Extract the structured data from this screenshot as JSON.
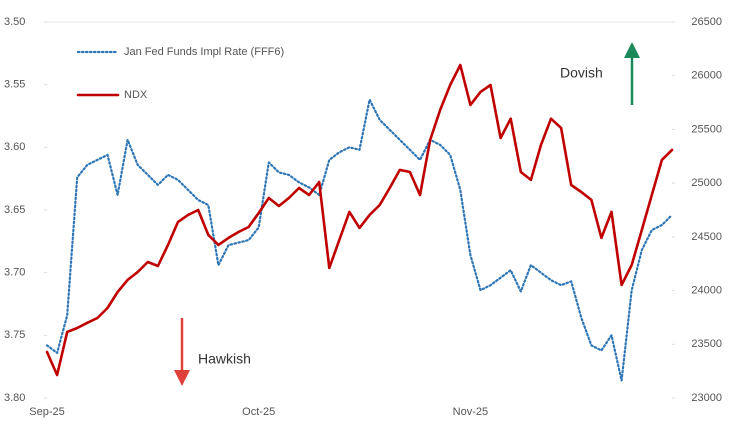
{
  "chart_data": {
    "type": "line",
    "categories": [
      "Sep-25",
      null,
      null,
      null,
      null,
      null,
      null,
      null,
      null,
      null,
      null,
      null,
      null,
      null,
      null,
      null,
      null,
      null,
      null,
      null,
      null,
      "Oct-25",
      null,
      null,
      null,
      null,
      null,
      null,
      null,
      null,
      null,
      null,
      null,
      null,
      null,
      null,
      null,
      null,
      null,
      null,
      null,
      null,
      "Nov-25",
      null,
      null,
      null,
      null,
      null,
      null,
      null,
      null,
      null,
      null,
      null,
      null,
      null,
      null,
      null,
      null,
      null,
      null,
      null,
      null
    ],
    "series": [
      {
        "name": "Jan Fed Funds Impl Rate (FFF6)",
        "color": "#2e75b6",
        "style": "dotted",
        "axis": "y",
        "values": [
          3.758,
          3.764,
          3.734,
          3.624,
          3.614,
          3.61,
          3.606,
          3.638,
          3.594,
          3.614,
          3.622,
          3.63,
          3.622,
          3.626,
          3.634,
          3.642,
          3.646,
          3.694,
          3.678,
          3.676,
          3.674,
          3.664,
          3.612,
          3.62,
          3.622,
          3.628,
          3.632,
          3.638,
          3.61,
          3.604,
          3.6,
          3.602,
          3.562,
          3.578,
          3.586,
          3.594,
          3.602,
          3.61,
          3.594,
          3.598,
          3.606,
          3.634,
          3.686,
          3.714,
          3.71,
          3.704,
          3.698,
          3.715,
          3.694,
          3.7,
          3.706,
          3.71,
          3.707,
          3.736,
          3.758,
          3.762,
          3.75,
          3.786,
          3.714,
          3.682,
          3.666,
          3.662,
          3.654
        ]
      },
      {
        "name": "NDX",
        "color": "#c00000",
        "style": "solid",
        "axis": "y2",
        "values": [
          23428,
          23214,
          23615,
          23652,
          23700,
          23745,
          23838,
          23987,
          24099,
          24173,
          24266,
          24229,
          24425,
          24639,
          24704,
          24750,
          24518,
          24425,
          24490,
          24545,
          24592,
          24722,
          24862,
          24787,
          24862,
          24955,
          24890,
          25011,
          24210,
          24471,
          24732,
          24583,
          24704,
          24797,
          24955,
          25123,
          25104,
          24890,
          25400,
          25680,
          25914,
          26100,
          25728,
          25849,
          25914,
          25420,
          25600,
          25104,
          25030,
          25356,
          25600,
          25514,
          24983,
          24918,
          24844,
          24490,
          24732,
          24052,
          24238,
          24564,
          24890,
          25216,
          25309
        ]
      }
    ],
    "ylim": [
      3.8,
      3.5
    ],
    "yticks": [
      {
        "value": 3.5,
        "label": "3.50"
      },
      3.55,
      {
        "value": 3.6,
        "label": "3.60"
      },
      3.65,
      {
        "value": 3.7,
        "label": "3.70"
      },
      3.75,
      {
        "value": 3.8,
        "label": "3.80"
      }
    ],
    "y2lim": [
      23000,
      26500
    ],
    "y2ticks": [
      23000,
      23500,
      24000,
      24500,
      25000,
      25500,
      26000,
      26500
    ],
    "annotations": [
      "Dovish",
      "Hawkish"
    ],
    "legend": "top-left"
  }
}
